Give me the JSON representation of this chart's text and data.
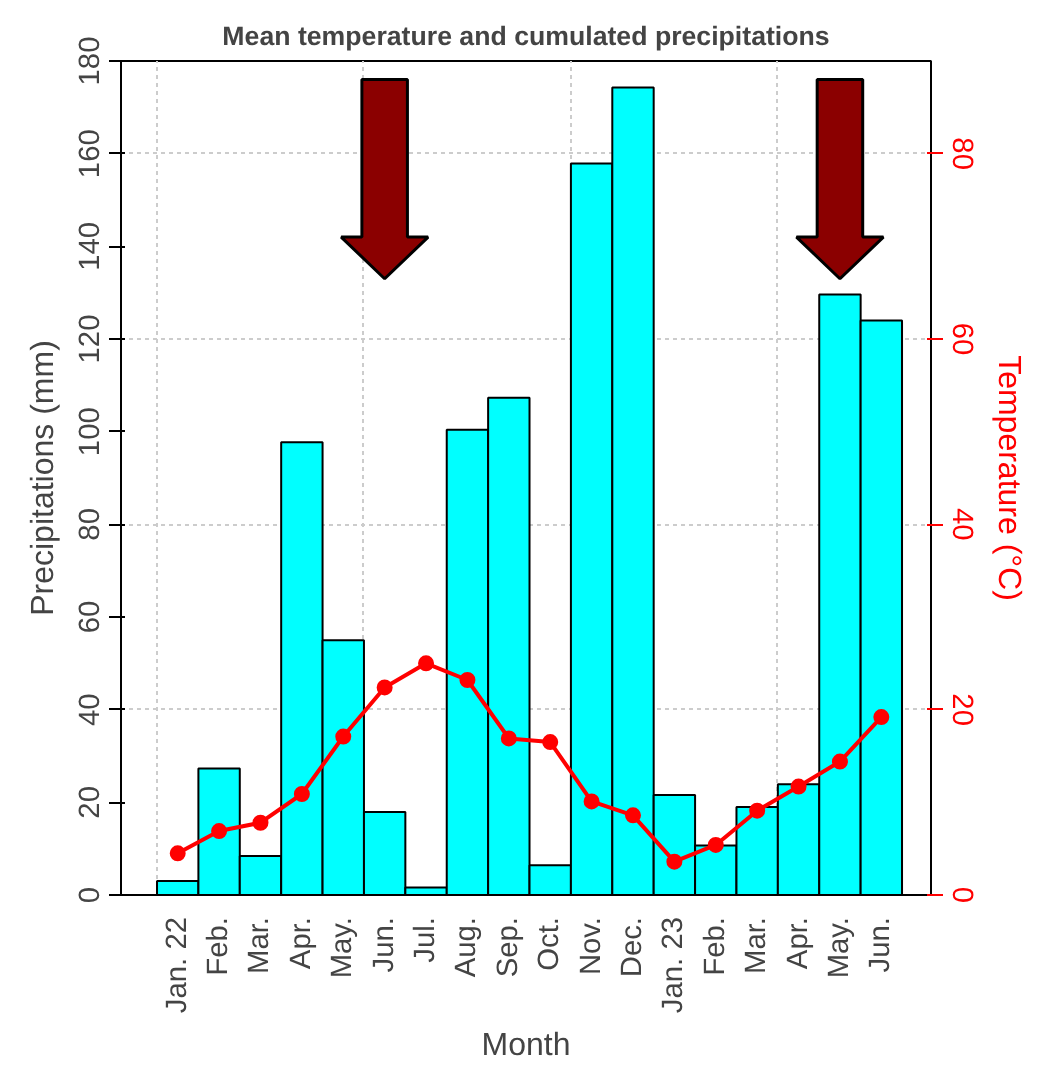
{
  "chart_data": {
    "type": "bar",
    "title": "Mean temperature and cumulated precipitations",
    "xlabel": "Month",
    "ylabel": "Precipitations (mm)",
    "y2label": "Temperature (°C)",
    "categories": [
      "Jan. 22",
      "Feb.",
      "Mar.",
      "Apr.",
      "May.",
      "Jun.",
      "Jul.",
      "Aug.",
      "Sep.",
      "Oct.",
      "Nov.",
      "Dec.",
      "Jan. 23",
      "Feb.",
      "Mar.",
      "Apr.",
      "May.",
      "Jun."
    ],
    "series": [
      {
        "color": "#00ffff",
        "values": [
          3,
          27.3,
          8.4,
          97.7,
          55,
          17.9,
          1.6,
          100.4,
          107.3,
          6.4,
          157.9,
          174.3,
          21.6,
          10.7,
          19,
          23.9,
          129.6,
          124
        ]
      },
      {
        "type": "line",
        "axis": "y2",
        "color": "#ff0000",
        "values": [
          4.5,
          6.9,
          7.8,
          10.9,
          17.1,
          22.4,
          25.0,
          23.2,
          16.9,
          16.5,
          10.1,
          8.6,
          3.6,
          5.4,
          9.1,
          11.7,
          14.4,
          19.2
        ]
      }
    ],
    "ylim": [
      0,
      180
    ],
    "yticks": [
      0,
      20,
      40,
      60,
      80,
      100,
      120,
      140,
      160,
      180
    ],
    "y2lim": [
      0,
      90
    ],
    "y2ticks": [
      0,
      20,
      40,
      60,
      80
    ],
    "grid": true,
    "marker": "circle",
    "line_style": "solid"
  }
}
